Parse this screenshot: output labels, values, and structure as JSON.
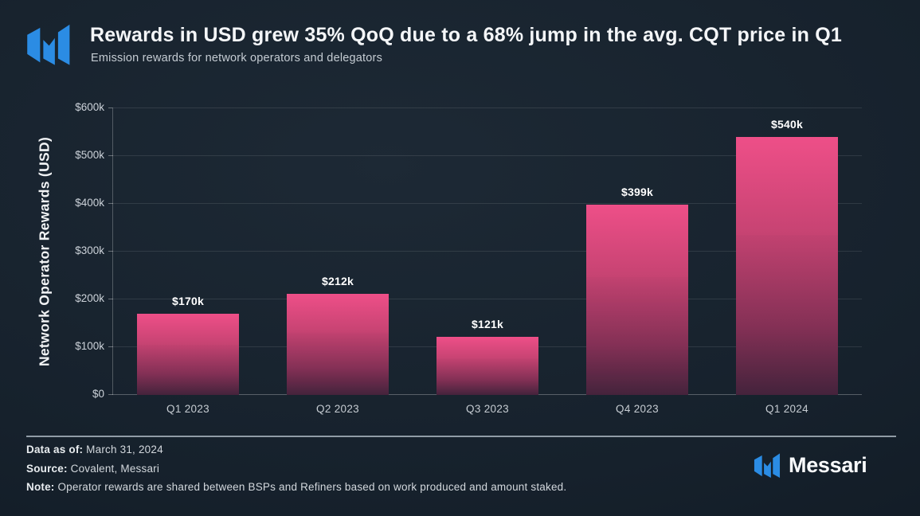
{
  "header": {
    "title": "Rewards in USD grew 35% QoQ due to a 68% jump in the avg. CQT price in Q1",
    "subtitle": "Emission rewards for network operators and delegators"
  },
  "chart_data": {
    "type": "bar",
    "title": "Rewards in USD grew 35% QoQ due to a 68% jump in the avg. CQT price in Q1",
    "subtitle": "Emission rewards for network operators and delegators",
    "categories": [
      "Q1 2023",
      "Q2 2023",
      "Q3 2023",
      "Q4 2023",
      "Q1 2024"
    ],
    "values": [
      170,
      212,
      121,
      399,
      540
    ],
    "value_labels": [
      "$170k",
      "$212k",
      "$121k",
      "$399k",
      "$540k"
    ],
    "unit": "USD thousands",
    "xlabel": "",
    "ylabel": "Network Operator Rewards (USD)",
    "ylim": [
      0,
      600
    ],
    "ytick_step": 100,
    "ytick_labels": [
      "$0",
      "$100k",
      "$200k",
      "$300k",
      "$400k",
      "$500k",
      "$600k"
    ],
    "grid": "horizontal",
    "legend": "none",
    "bar_color_top": "#ee4f88",
    "bar_color_bottom": "#40223a"
  },
  "footer": {
    "data_as_of_label": "Data as of:",
    "data_as_of_value": " March 31, 2024",
    "source_label": "Source:",
    "source_value": " Covalent, Messari",
    "note_label": "Note:",
    "note_value": " Operator rewards are shared between BSPs and Refiners based on work produced and amount staked."
  },
  "branding": {
    "wordmark": "Messari",
    "logo_color": "#2b8ce4"
  }
}
